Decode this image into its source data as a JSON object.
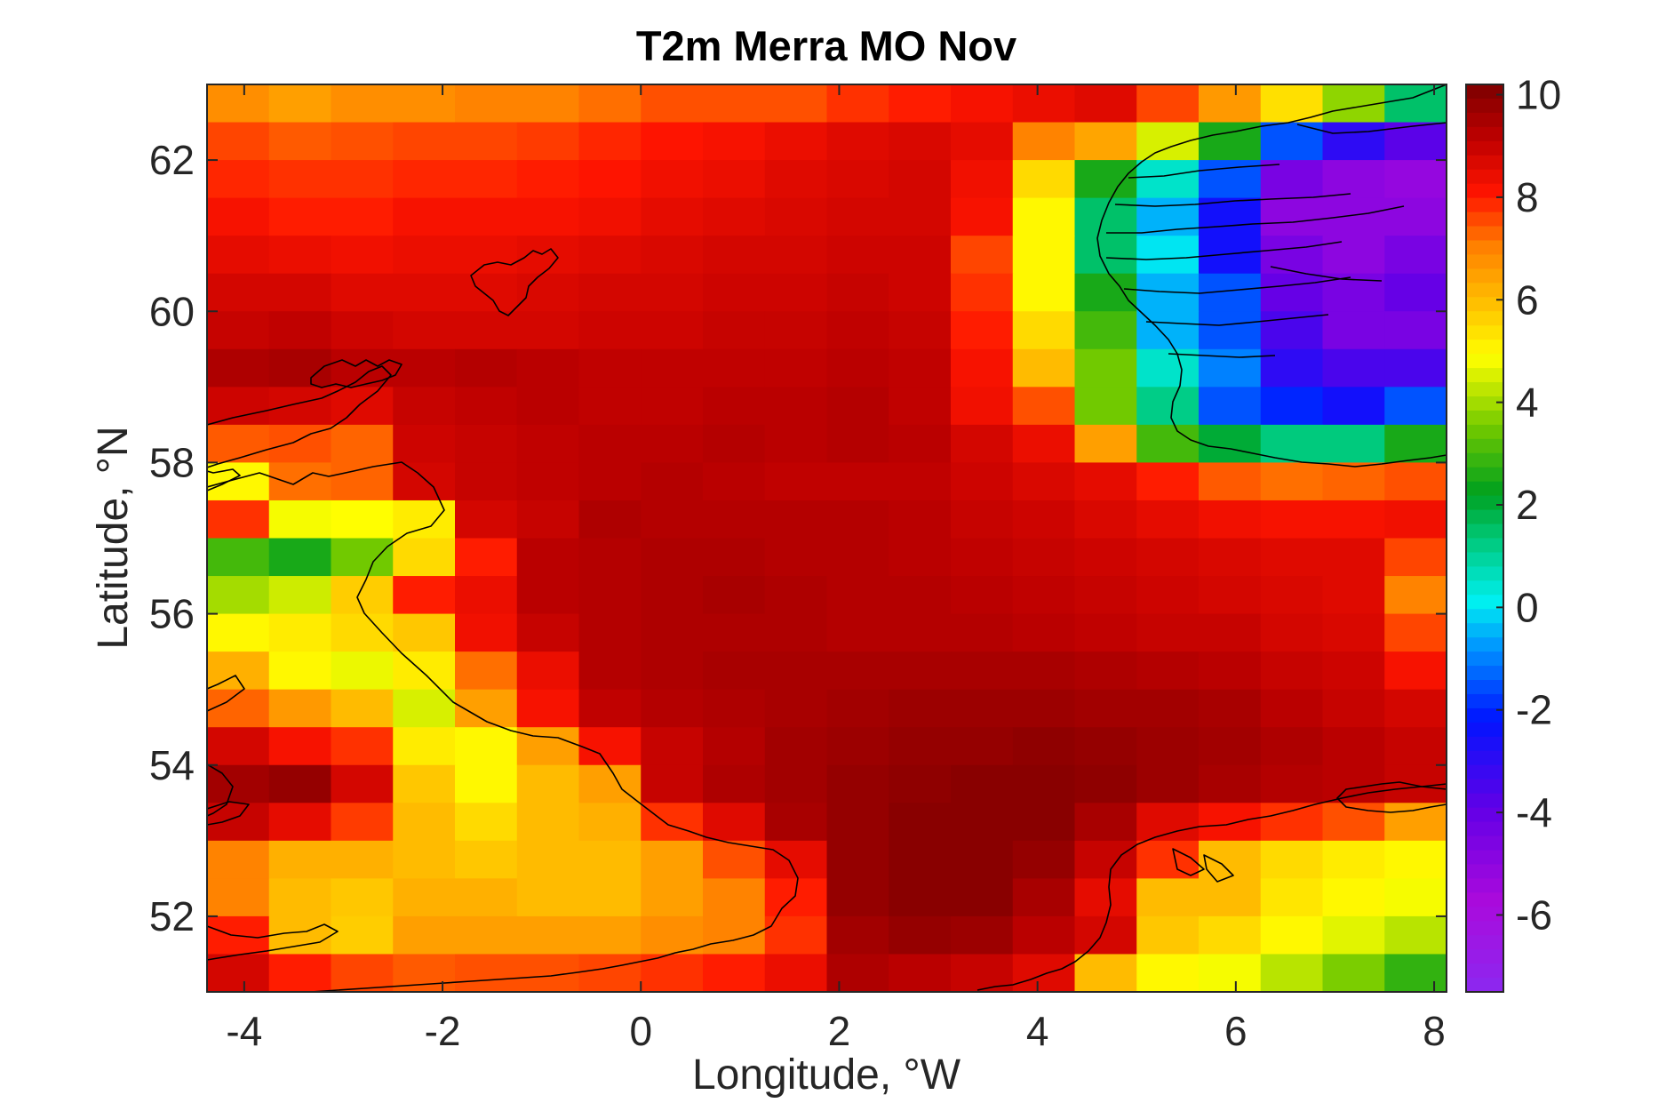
{
  "chart_data": {
    "type": "heatmap",
    "title": "T2m Merra MO Nov",
    "xlabel": "Longitude, °W",
    "ylabel": "Latitude, °N",
    "xlim": [
      -4.375,
      8.125
    ],
    "ylim": [
      51.0,
      63.0
    ],
    "x_ticks": [
      -4,
      -2,
      0,
      2,
      4,
      6,
      8
    ],
    "x_tick_labels": [
      "-4",
      "-2",
      "0",
      "2",
      "4",
      "6",
      "8"
    ],
    "y_ticks": [
      52,
      54,
      56,
      58,
      60,
      62
    ],
    "y_tick_labels": [
      "52",
      "54",
      "56",
      "58",
      "60",
      "62"
    ],
    "colorbar": {
      "range": [
        -7.5,
        10.2
      ],
      "ticks": [
        -6,
        -4,
        -2,
        0,
        2,
        4,
        6,
        8,
        10
      ],
      "tick_labels": [
        "-6",
        "-4",
        "-2",
        "0",
        "2",
        "4",
        "6",
        "8",
        "10"
      ],
      "colormap": "jet-like (purple-blue-cyan-green-yellow-orange-red-darkred)"
    },
    "grid": {
      "lon_start": -4.375,
      "lon_step": 0.625,
      "lon_count": 20,
      "lat_start": 51.0,
      "lat_step": 0.5,
      "lat_count": 24,
      "rows_north_to_south": [
        [
          6.8,
          6.5,
          6.8,
          6.8,
          7.0,
          7.0,
          7.2,
          7.5,
          7.5,
          7.5,
          7.8,
          8.0,
          8.2,
          8.4,
          8.6,
          7.6,
          6.6,
          5.4,
          3.8,
          1.5
        ],
        [
          7.6,
          7.4,
          7.5,
          7.6,
          7.6,
          7.7,
          7.9,
          8.1,
          8.2,
          8.4,
          8.6,
          8.7,
          8.5,
          7.0,
          6.4,
          4.5,
          2.5,
          -1.5,
          -3.0,
          -3.8
        ],
        [
          7.9,
          7.8,
          7.8,
          7.9,
          7.9,
          8.0,
          8.1,
          8.3,
          8.4,
          8.6,
          8.7,
          8.8,
          8.3,
          5.5,
          2.5,
          0.5,
          -1.5,
          -4.5,
          -5.0,
          -5.2
        ],
        [
          8.2,
          8.0,
          8.0,
          8.2,
          8.2,
          8.2,
          8.3,
          8.5,
          8.6,
          8.7,
          8.8,
          8.8,
          8.2,
          5.0,
          1.5,
          -0.5,
          -2.5,
          -5.0,
          -5.0,
          -5.0
        ],
        [
          8.5,
          8.4,
          8.3,
          8.4,
          8.4,
          8.5,
          8.6,
          8.7,
          8.8,
          8.8,
          8.9,
          8.9,
          7.6,
          5.0,
          1.5,
          0.0,
          -2.5,
          -4.5,
          -5.0,
          -4.5
        ],
        [
          8.8,
          8.8,
          8.6,
          8.6,
          8.6,
          8.7,
          8.8,
          8.8,
          8.9,
          8.9,
          9.0,
          8.9,
          7.8,
          5.0,
          2.5,
          -0.5,
          -1.5,
          -4.0,
          -4.5,
          -4.0
        ],
        [
          9.0,
          9.1,
          8.9,
          8.8,
          8.8,
          8.8,
          8.9,
          8.9,
          9.0,
          9.0,
          9.1,
          9.0,
          8.0,
          5.5,
          3.0,
          -0.5,
          -1.5,
          -3.5,
          -4.5,
          -4.5
        ],
        [
          9.4,
          9.5,
          9.2,
          9.2,
          9.3,
          9.2,
          9.1,
          9.1,
          9.1,
          9.1,
          9.2,
          9.1,
          8.2,
          6.0,
          3.5,
          0.5,
          -1.0,
          -3.0,
          -3.5,
          -3.5
        ],
        [
          8.9,
          8.8,
          8.6,
          9.0,
          9.1,
          9.2,
          9.1,
          9.1,
          9.2,
          9.2,
          9.3,
          9.1,
          8.3,
          7.5,
          3.5,
          1.2,
          -1.5,
          -2.0,
          -2.5,
          -1.5
        ],
        [
          7.4,
          7.5,
          7.3,
          8.9,
          9.0,
          9.1,
          9.2,
          9.2,
          9.3,
          9.2,
          9.3,
          9.2,
          8.8,
          8.4,
          6.5,
          3.0,
          2.0,
          1.3,
          1.3,
          2.5
        ],
        [
          5.0,
          7.2,
          7.3,
          8.8,
          9.0,
          9.1,
          9.2,
          9.3,
          9.2,
          9.1,
          9.1,
          9.1,
          8.9,
          8.7,
          8.5,
          8.0,
          7.4,
          7.2,
          7.3,
          7.5
        ],
        [
          7.8,
          4.8,
          4.9,
          5.2,
          8.8,
          9.0,
          9.4,
          9.3,
          9.3,
          9.3,
          9.3,
          9.2,
          9.0,
          8.9,
          8.7,
          8.5,
          8.3,
          8.2,
          8.2,
          8.3
        ],
        [
          3.0,
          2.5,
          3.5,
          5.5,
          8.0,
          9.2,
          9.3,
          9.4,
          9.4,
          9.3,
          9.3,
          9.2,
          9.1,
          9.0,
          8.9,
          8.8,
          8.7,
          8.6,
          8.6,
          7.6
        ],
        [
          4.0,
          4.4,
          5.7,
          8.0,
          8.4,
          9.2,
          9.3,
          9.4,
          9.5,
          9.4,
          9.3,
          9.3,
          9.2,
          9.1,
          9.0,
          8.9,
          8.8,
          8.7,
          8.6,
          7.0
        ],
        [
          5.0,
          5.2,
          5.5,
          5.8,
          8.3,
          9.0,
          9.3,
          9.4,
          9.4,
          9.4,
          9.3,
          9.3,
          9.3,
          9.2,
          9.1,
          9.0,
          9.0,
          8.8,
          8.7,
          7.6
        ],
        [
          6.2,
          5.0,
          4.7,
          5.2,
          7.2,
          8.4,
          9.3,
          9.4,
          9.5,
          9.5,
          9.5,
          9.5,
          9.5,
          9.5,
          9.4,
          9.3,
          9.2,
          9.0,
          8.9,
          8.2
        ],
        [
          7.3,
          6.6,
          6.0,
          4.5,
          6.5,
          8.2,
          9.1,
          9.3,
          9.4,
          9.5,
          9.6,
          9.7,
          9.7,
          9.7,
          9.6,
          9.6,
          9.5,
          9.2,
          9.0,
          8.8
        ],
        [
          8.8,
          8.2,
          7.8,
          5.2,
          5.0,
          6.5,
          8.2,
          9.0,
          9.3,
          9.6,
          9.7,
          9.8,
          9.8,
          9.9,
          9.8,
          9.7,
          9.6,
          9.4,
          9.2,
          9.0
        ],
        [
          9.6,
          9.8,
          8.8,
          5.8,
          5.0,
          6.0,
          6.5,
          9.0,
          9.4,
          9.6,
          9.8,
          9.9,
          10.0,
          10.0,
          9.9,
          9.7,
          9.5,
          9.3,
          9.2,
          9.0
        ],
        [
          9.0,
          8.5,
          7.7,
          6.0,
          5.5,
          6.0,
          6.2,
          7.8,
          8.6,
          9.5,
          9.8,
          10.0,
          10.0,
          10.0,
          9.5,
          8.6,
          8.2,
          7.8,
          7.5,
          6.5
        ],
        [
          7.0,
          6.2,
          6.2,
          6.0,
          5.8,
          6.0,
          6.0,
          6.5,
          7.5,
          8.5,
          9.8,
          10.0,
          10.0,
          9.8,
          9.0,
          7.8,
          6.0,
          5.5,
          5.2,
          5.0
        ],
        [
          7.0,
          6.0,
          5.8,
          6.2,
          6.2,
          6.0,
          6.0,
          6.5,
          7.0,
          8.0,
          9.8,
          10.0,
          10.0,
          9.5,
          8.5,
          6.0,
          6.0,
          5.3,
          5.0,
          4.8
        ],
        [
          8.0,
          6.0,
          5.7,
          6.5,
          6.5,
          6.5,
          6.5,
          6.8,
          7.0,
          7.8,
          9.6,
          9.8,
          9.7,
          9.2,
          8.8,
          5.8,
          5.5,
          5.0,
          4.6,
          4.2
        ],
        [
          8.8,
          8.0,
          7.6,
          7.4,
          7.5,
          7.5,
          7.6,
          7.8,
          8.0,
          8.4,
          9.4,
          9.2,
          9.0,
          8.6,
          6.0,
          5.0,
          4.8,
          4.2,
          3.6,
          2.8
        ]
      ]
    }
  }
}
